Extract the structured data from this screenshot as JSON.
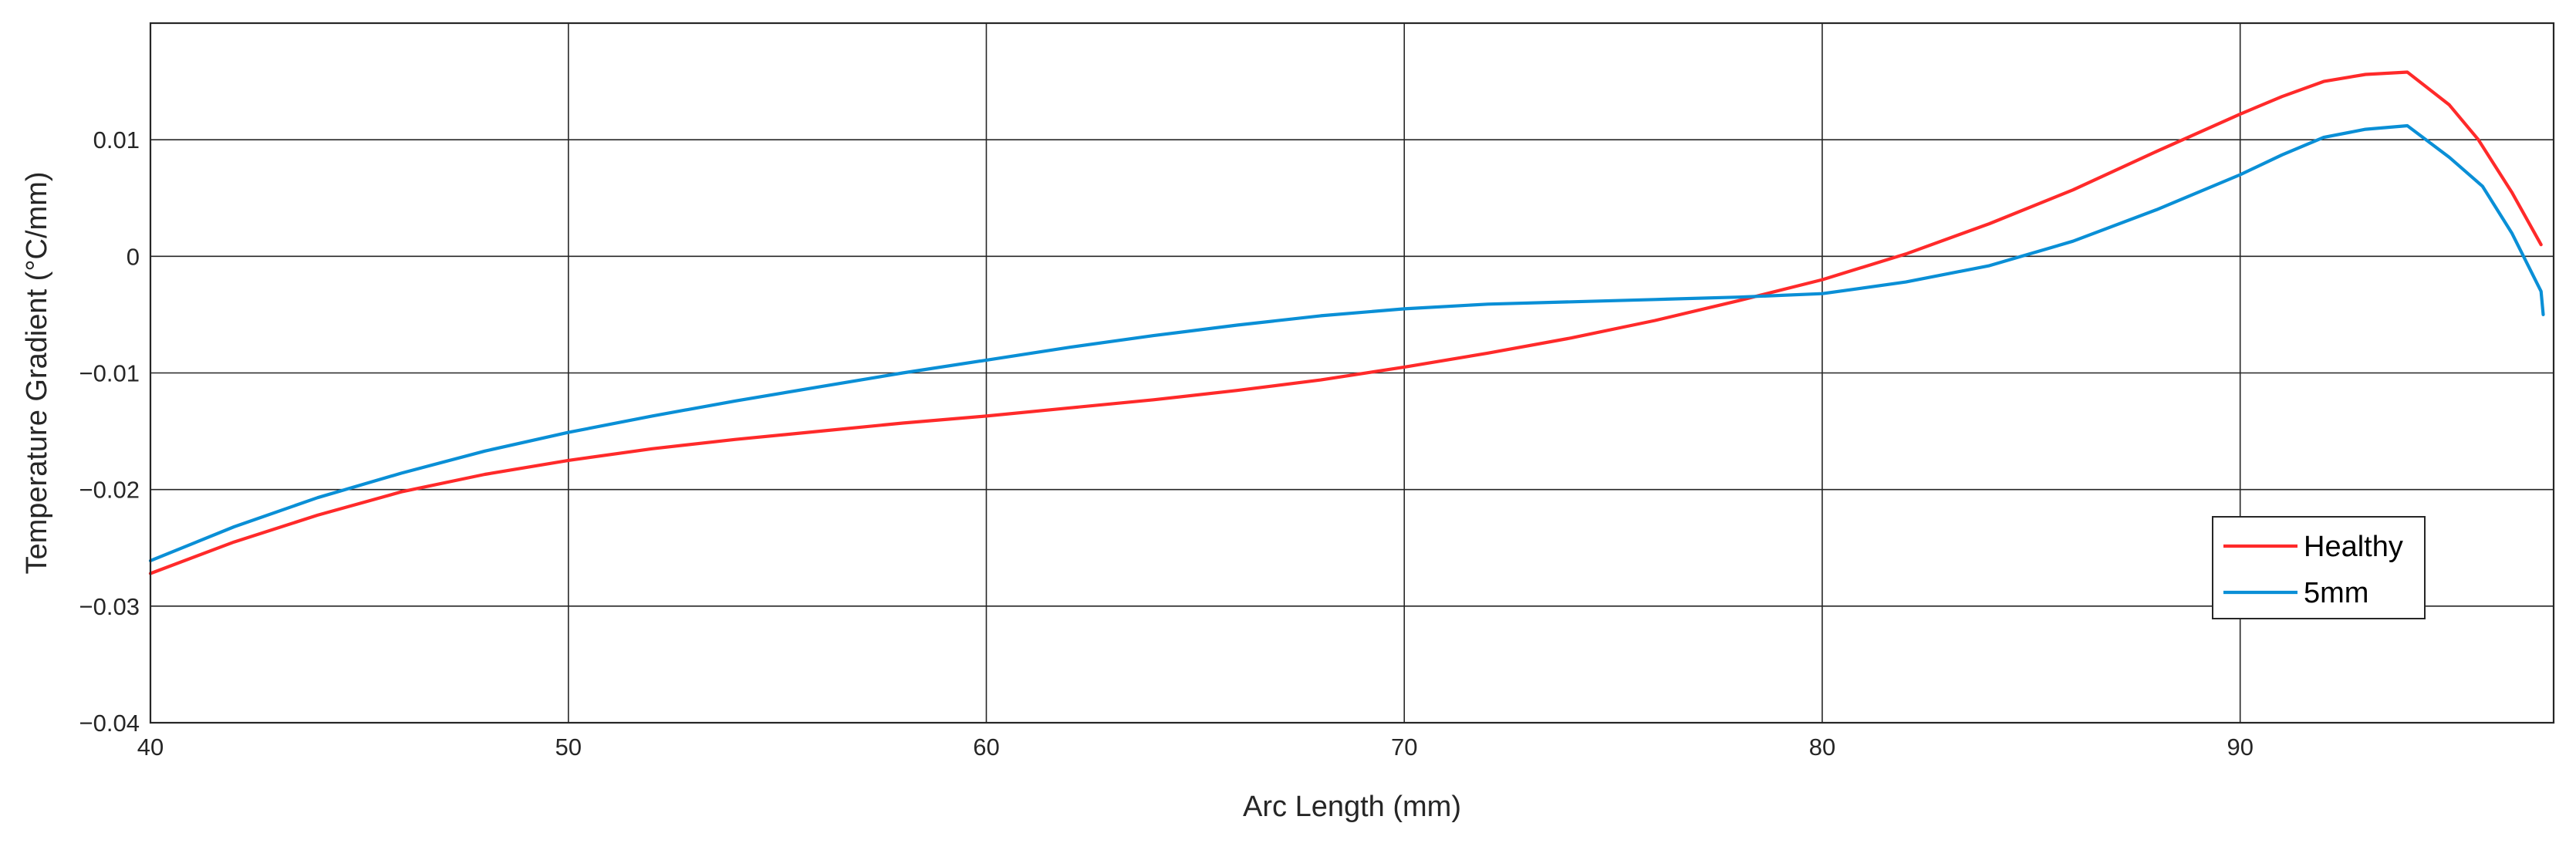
{
  "chart_data": {
    "type": "line",
    "title": "",
    "xlabel": "Arc Length (mm)",
    "ylabel": "Temperature Gradient (°C/mm)",
    "xlim": [
      40,
      97.5
    ],
    "ylim": [
      -0.04,
      0.02
    ],
    "xticks": [
      40,
      50,
      60,
      70,
      80,
      90
    ],
    "xtick_labels": [
      "40",
      "50",
      "60",
      "70",
      "80",
      "90"
    ],
    "yticks": [
      -0.04,
      -0.03,
      -0.02,
      -0.01,
      0,
      0.01
    ],
    "ytick_labels": [
      "−0.04",
      "−0.03",
      "−0.02",
      "−0.01",
      "0",
      "0.01"
    ],
    "grid": true,
    "legend_position": "bottom-right",
    "series": [
      {
        "name": "Healthy",
        "color": "#ff2a2a",
        "x": [
          40,
          42,
          44,
          46,
          48,
          50,
          52,
          54,
          56,
          58,
          60,
          62,
          64,
          66,
          68,
          70,
          72,
          74,
          76,
          78,
          80,
          82,
          84,
          86,
          88,
          90,
          91,
          92,
          93,
          94,
          95,
          95.7,
          96.5,
          97.2
        ],
        "y": [
          -0.0272,
          -0.0245,
          -0.0222,
          -0.0202,
          -0.0187,
          -0.0175,
          -0.0165,
          -0.0157,
          -0.015,
          -0.0143,
          -0.0137,
          -0.013,
          -0.0123,
          -0.0115,
          -0.0106,
          -0.0095,
          -0.0083,
          -0.007,
          -0.0055,
          -0.0038,
          -0.002,
          0.0002,
          0.0028,
          0.0057,
          0.009,
          0.0122,
          0.0137,
          0.015,
          0.0156,
          0.0158,
          0.013,
          0.01,
          0.0055,
          0.001
        ]
      },
      {
        "name": "5mm",
        "color": "#0a8fd6",
        "x": [
          40,
          42,
          44,
          46,
          48,
          50,
          52,
          54,
          56,
          58,
          60,
          62,
          64,
          66,
          68,
          70,
          72,
          74,
          76,
          78,
          80,
          82,
          84,
          86,
          88,
          90,
          91,
          92,
          93,
          94,
          95,
          95.8,
          96.5,
          97.2,
          97.25
        ],
        "y": [
          -0.0261,
          -0.0232,
          -0.0207,
          -0.0186,
          -0.0167,
          -0.0151,
          -0.0137,
          -0.0124,
          -0.0112,
          -0.01,
          -0.0089,
          -0.0078,
          -0.0068,
          -0.0059,
          -0.0051,
          -0.0045,
          -0.0041,
          -0.0039,
          -0.0037,
          -0.0035,
          -0.0032,
          -0.0022,
          -0.0008,
          0.0013,
          0.004,
          0.007,
          0.0087,
          0.0102,
          0.0109,
          0.0112,
          0.0085,
          0.006,
          0.002,
          -0.003,
          -0.005
        ]
      }
    ]
  }
}
